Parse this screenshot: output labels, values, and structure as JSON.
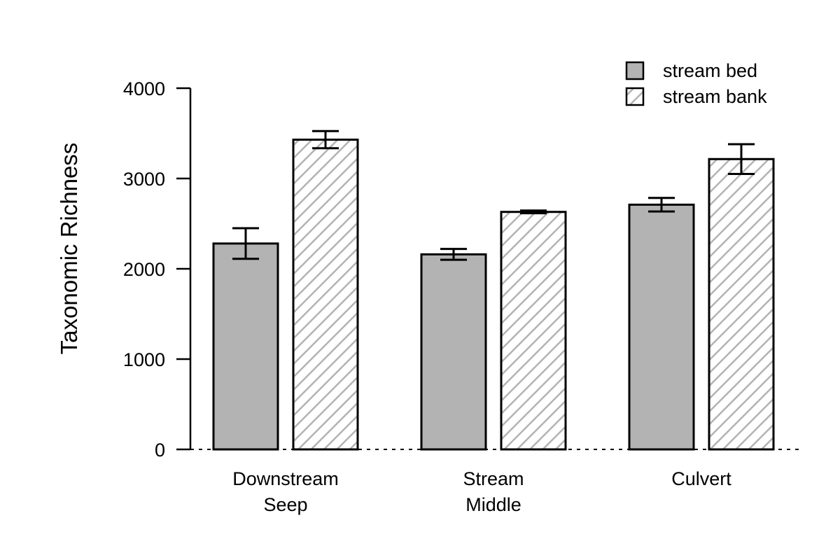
{
  "chart_data": {
    "type": "bar",
    "categories": [
      [
        "Downstream",
        "Seep"
      ],
      [
        "Stream",
        "Middle"
      ],
      [
        "Culvert"
      ]
    ],
    "series": [
      {
        "name": "stream bed",
        "values": [
          2280,
          2160,
          2710
        ],
        "error": [
          170,
          60,
          75
        ],
        "fill": "#b3b3b3",
        "pattern": "solid"
      },
      {
        "name": "stream bank",
        "values": [
          3430,
          2630,
          3215
        ],
        "error": [
          95,
          15,
          165
        ],
        "fill": "#ffffff",
        "pattern": "hatched"
      }
    ],
    "xlabel": "",
    "ylabel": "Taxonomic Richness",
    "ylim": [
      0,
      4000
    ],
    "yticks": [
      0,
      1000,
      2000,
      3000,
      4000
    ],
    "grid": false,
    "legend_position": "top-right",
    "baseline": "dashed",
    "colors": {
      "bed": "#b3b3b3",
      "hatch": "#b3b3b3",
      "outline": "#000000"
    }
  }
}
